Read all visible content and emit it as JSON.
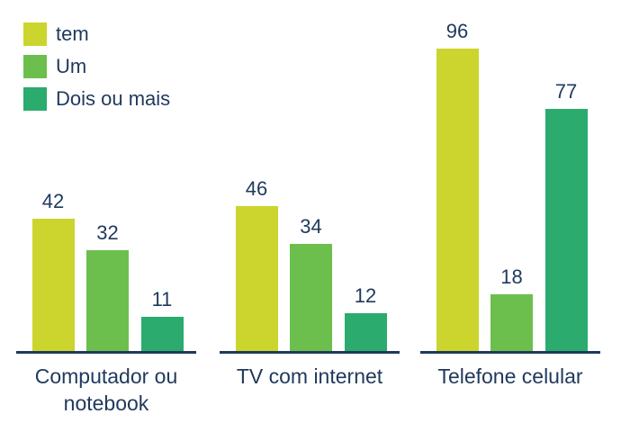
{
  "chart_data": {
    "type": "bar",
    "title": "",
    "categories": [
      "Computador ou notebook",
      "TV com internet",
      "Telefone celular"
    ],
    "series": [
      {
        "name": "tem",
        "color": "#cbd52d",
        "values": [
          42,
          46,
          96
        ]
      },
      {
        "name": "Um",
        "color": "#6cbf4d",
        "values": [
          32,
          34,
          18
        ]
      },
      {
        "name": "Dois ou mais",
        "color": "#2bab6e",
        "values": [
          11,
          12,
          77
        ]
      }
    ],
    "ylim": [
      0,
      100
    ],
    "grid": false,
    "value_labels": true,
    "legend_position": "top-left"
  },
  "colors": {
    "text": "#1f395c",
    "axis": "#1f395c",
    "background": "#ffffff"
  }
}
